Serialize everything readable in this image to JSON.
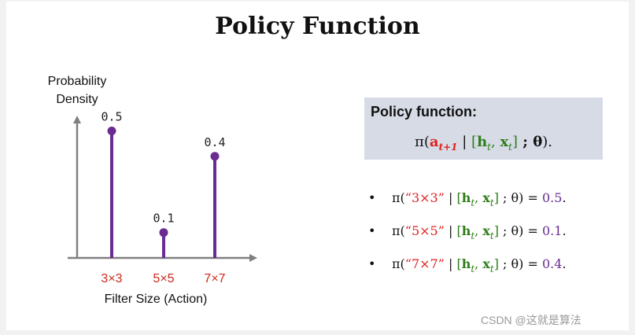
{
  "title": "Policy Function",
  "chart": {
    "ylabel_line1": "Probability",
    "ylabel_line2": "Density",
    "xlabel": "Filter Size  (Action)"
  },
  "chart_data": {
    "type": "bar",
    "style": "stem",
    "categories": [
      "3×3",
      "5×5",
      "7×7"
    ],
    "values": [
      0.5,
      0.1,
      0.4
    ],
    "value_labels": [
      "0.5",
      "0.1",
      "0.4"
    ],
    "ylim": [
      0,
      0.65
    ],
    "colors": {
      "stem": "#6a2c91",
      "category": "#cc2a1a",
      "axis": "#808080"
    }
  },
  "policy_box": {
    "heading": "Policy function:",
    "pi": "π(",
    "action": "a",
    "action_sub": "t+1",
    "sep": " | ",
    "state_open": "[",
    "h": "h",
    "h_sub": "t",
    "comma": ", ",
    "x": "x",
    "x_sub": "t",
    "state_close": "]",
    "theta": " ; θ",
    "close": ")."
  },
  "bullets": [
    {
      "bullet": "•",
      "pi": "π(",
      "action": "“3×3”",
      "tail": " ; θ) = ",
      "value": "0.5",
      "end": "."
    },
    {
      "bullet": "•",
      "pi": "π(",
      "action": "“5×5”",
      "tail": " ; θ) = ",
      "value": "0.1",
      "end": "."
    },
    {
      "bullet": "•",
      "pi": "π(",
      "action": "“7×7”",
      "tail": " ; θ) = ",
      "value": "0.4",
      "end": "."
    }
  ],
  "bullet_state": {
    "sep": " | ",
    "open": "[",
    "h": "h",
    "h_sub": "t",
    "comma": ", ",
    "x": "x",
    "x_sub": "t",
    "close": "]"
  },
  "watermark": "CSDN @这就是算法"
}
